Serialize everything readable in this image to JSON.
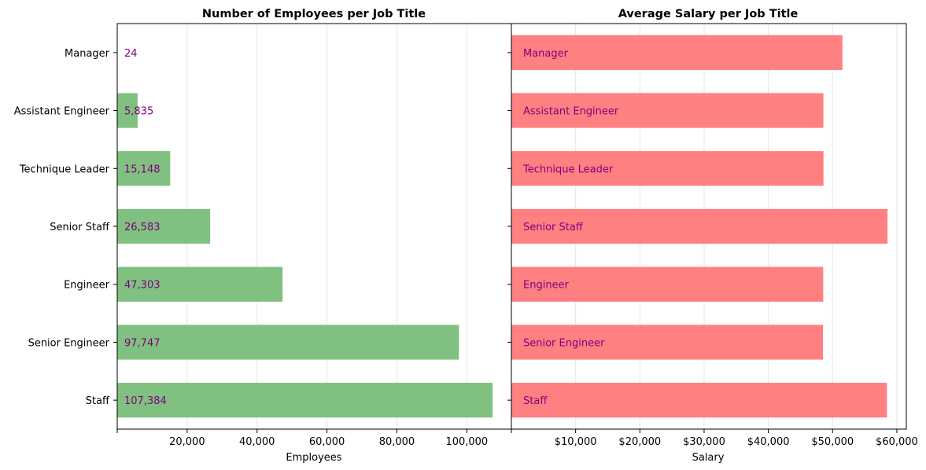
{
  "colors": {
    "employees_bar": "#80c080",
    "salary_bar": "#ff8080",
    "data_label": "#800080",
    "grid": "#e6e6e6",
    "axis": "#000000"
  },
  "chart_data": [
    {
      "type": "bar",
      "orientation": "horizontal",
      "title": "Number of Employees per Job Title",
      "xlabel": "Employees",
      "ylabel": "",
      "categories": [
        "Staff",
        "Senior Engineer",
        "Engineer",
        "Senior Staff",
        "Technique Leader",
        "Assistant Engineer",
        "Manager"
      ],
      "values": [
        107384,
        97747,
        47303,
        26583,
        15148,
        5835,
        24
      ],
      "data_labels": [
        "107,384",
        "97,747",
        "47,303",
        "26,583",
        "15,148",
        "5,835",
        "24"
      ],
      "xlim": [
        0,
        112753
      ],
      "xticks": [
        0,
        20000,
        40000,
        60000,
        80000,
        100000
      ],
      "xtick_labels": [
        "",
        "20,000",
        "40,000",
        "60,000",
        "80,000",
        "100,000"
      ],
      "grid": "x",
      "color": "#80c080"
    },
    {
      "type": "bar",
      "orientation": "horizontal",
      "title": "Average Salary per Job Title",
      "xlabel": "Salary",
      "ylabel": "",
      "categories": [
        "Staff",
        "Senior Engineer",
        "Engineer",
        "Senior Staff",
        "Technique Leader",
        "Assistant Engineer",
        "Manager"
      ],
      "values": [
        58465,
        48507,
        48535,
        58550,
        48583,
        48564,
        51531
      ],
      "data_labels": [
        "Staff",
        "Senior Engineer",
        "Engineer",
        "Senior Staff",
        "Technique Leader",
        "Assistant Engineer",
        "Manager"
      ],
      "xlim": [
        0,
        61477
      ],
      "xticks": [
        0,
        10000,
        20000,
        30000,
        40000,
        50000,
        60000
      ],
      "xtick_labels": [
        "",
        "$10,000",
        "$20,000",
        "$30,000",
        "$40,000",
        "$50,000",
        "$60,000"
      ],
      "grid": "x",
      "color": "#ff8080"
    }
  ]
}
